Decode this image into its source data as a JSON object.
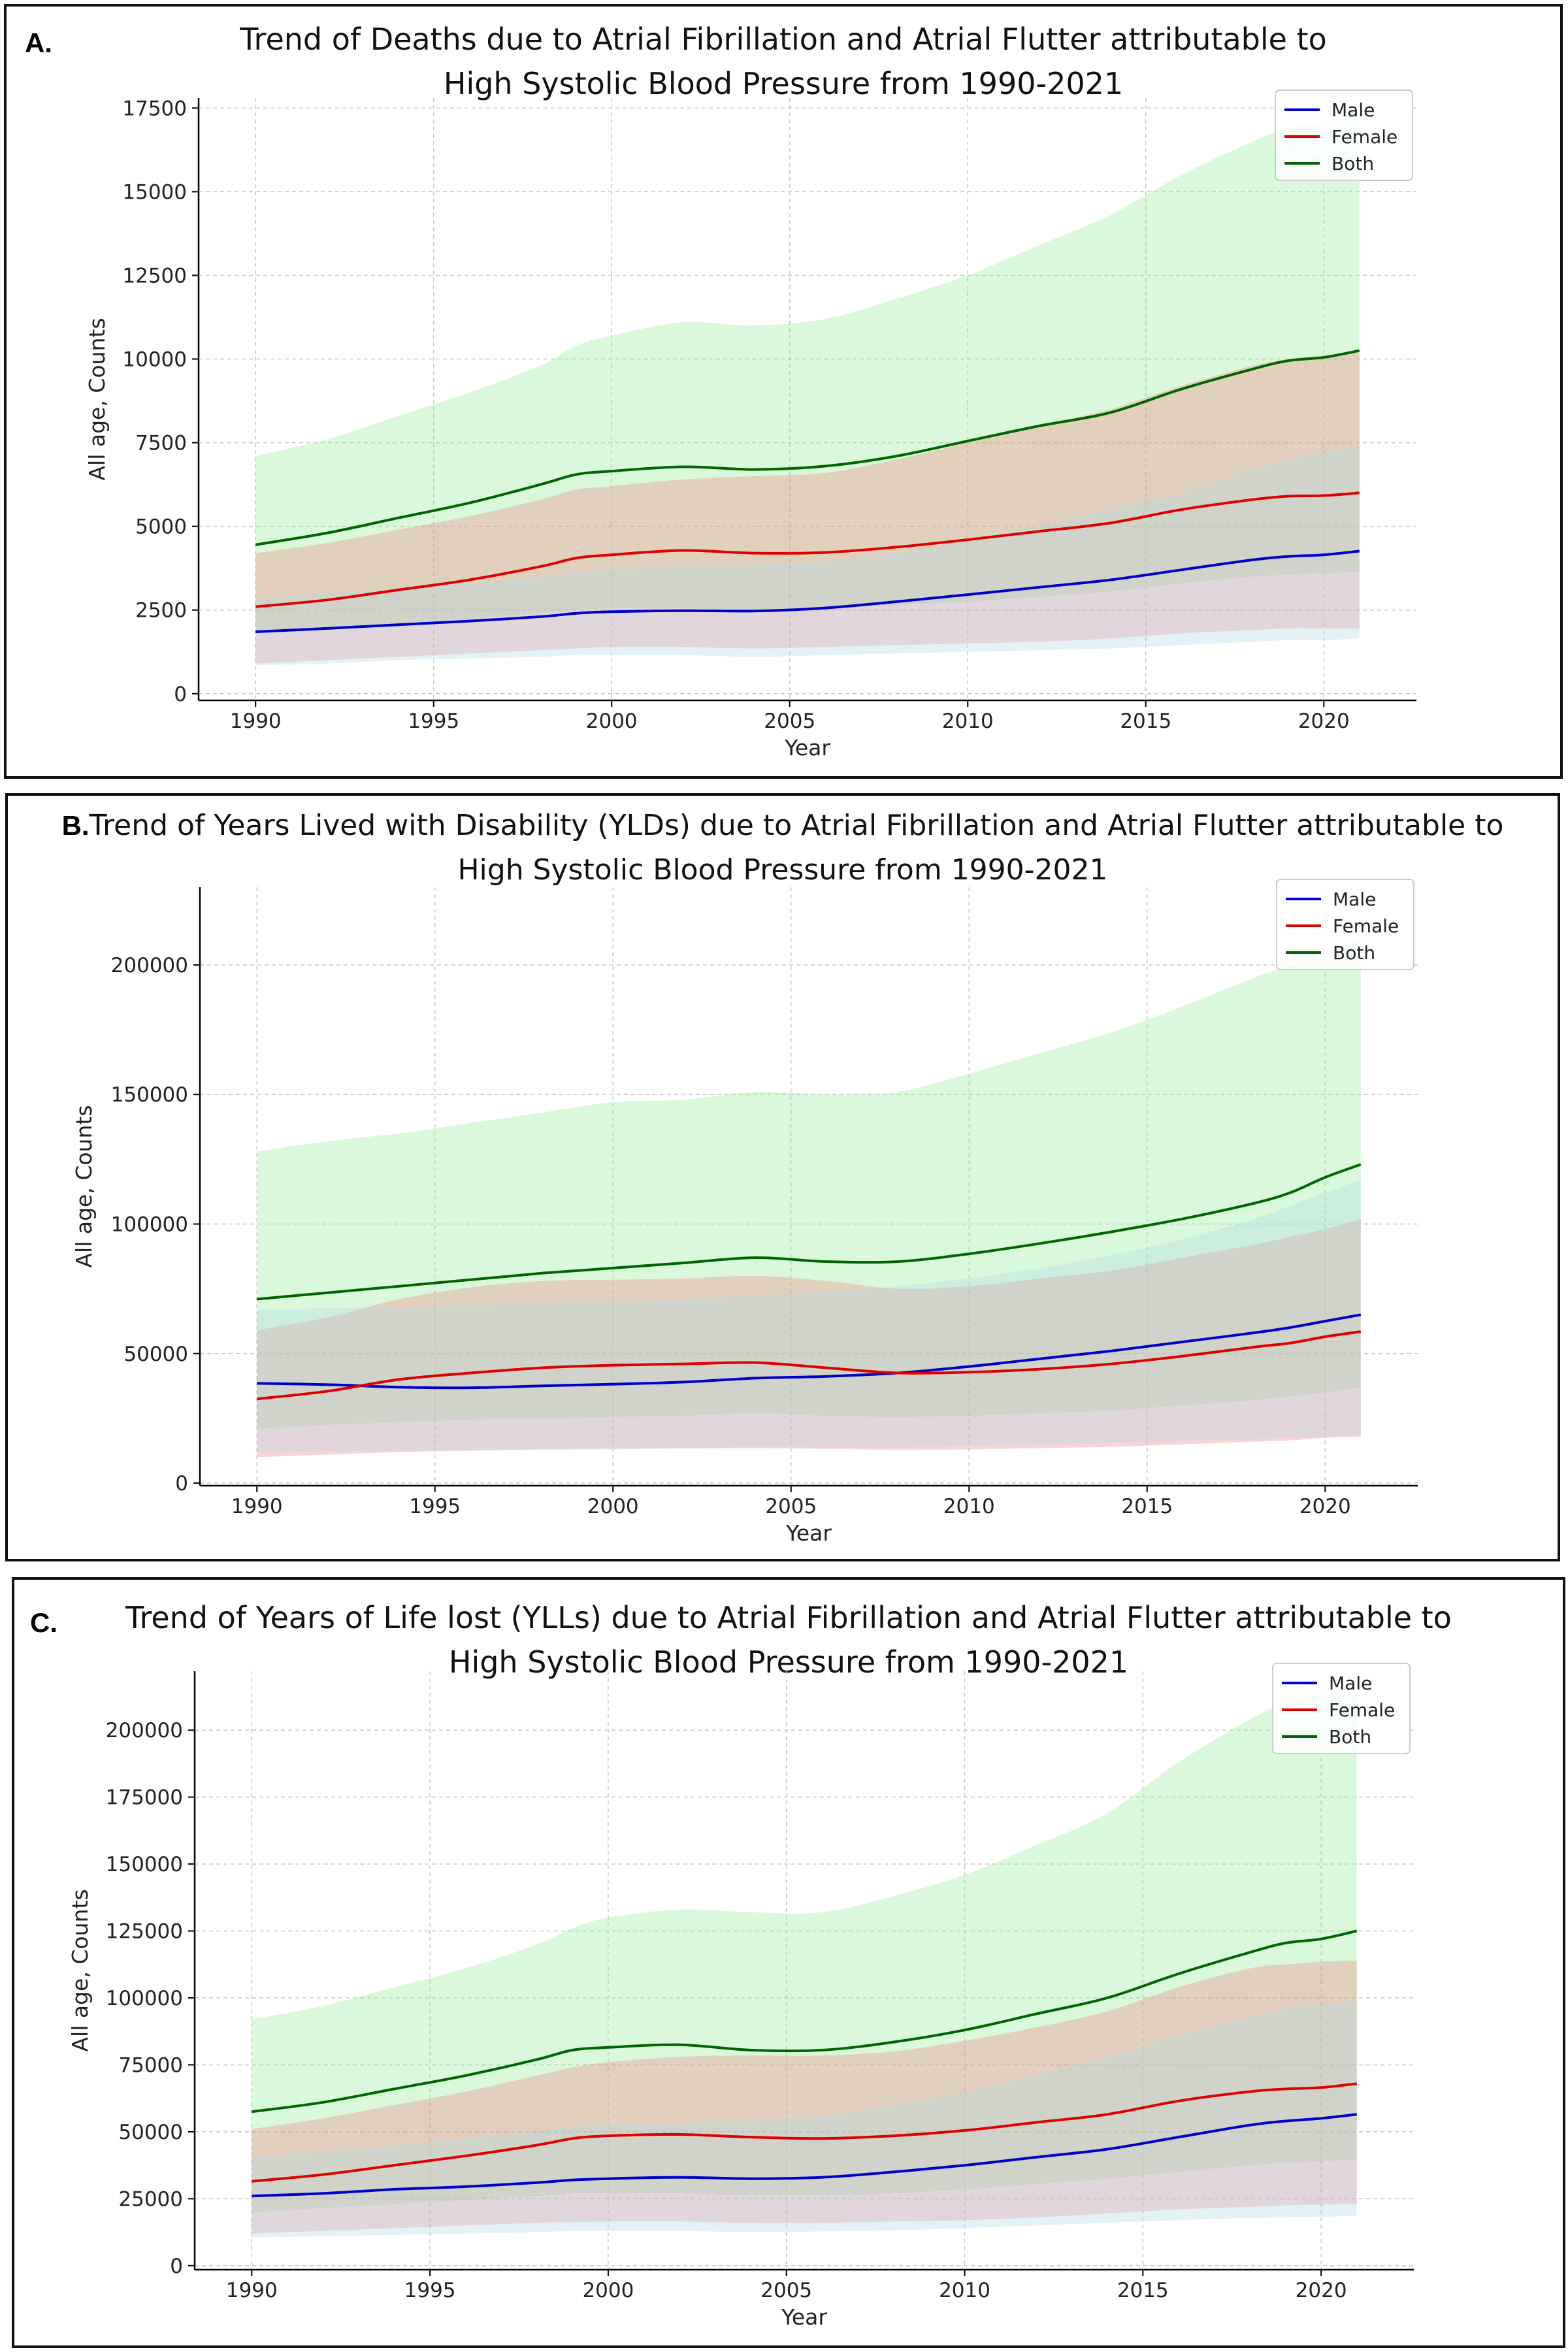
{
  "colors": {
    "male": "#0000cc",
    "male_band": "#add8e6",
    "female": "#e00000",
    "female_band": "#f08080",
    "both": "#006400",
    "both_band": "#90ee90"
  },
  "chart_data": [
    {
      "panel_label": "A.",
      "type": "area",
      "title_lines": [
        "Trend of Deaths due to Atrial Fibrillation and Atrial Flutter attributable to",
        "High Systolic Blood Pressure from 1990-2021"
      ],
      "xlabel": "Year",
      "ylabel": "All age, Counts",
      "xlim": [
        1988.4,
        2022.6
      ],
      "ylim": [
        -200,
        17800
      ],
      "xticks": [
        1990,
        1995,
        2000,
        2005,
        2010,
        2015,
        2020
      ],
      "yticks": [
        0,
        2500,
        5000,
        7500,
        10000,
        12500,
        15000,
        17500
      ],
      "grid": true,
      "legend_position": "top-right",
      "x": [
        1990,
        1992,
        1994,
        1996,
        1998,
        1999,
        2000,
        2002,
        2004,
        2006,
        2008,
        2010,
        2012,
        2014,
        2016,
        2018,
        2019,
        2020,
        2021
      ],
      "series": [
        {
          "name": "Male",
          "color_key": "male",
          "values": [
            1850,
            1950,
            2060,
            2170,
            2300,
            2400,
            2450,
            2480,
            2470,
            2560,
            2750,
            2960,
            3180,
            3400,
            3700,
            4000,
            4100,
            4150,
            4260
          ],
          "lower": [
            850,
            900,
            1000,
            1050,
            1100,
            1150,
            1150,
            1150,
            1100,
            1150,
            1200,
            1250,
            1300,
            1350,
            1450,
            1550,
            1600,
            1600,
            1650
          ],
          "upper": [
            2800,
            3000,
            3150,
            3300,
            3500,
            3650,
            3700,
            3800,
            3850,
            3950,
            4200,
            4600,
            5000,
            5500,
            6000,
            6700,
            7000,
            7200,
            7400
          ]
        },
        {
          "name": "Female",
          "color_key": "female",
          "values": [
            2600,
            2800,
            3100,
            3400,
            3800,
            4050,
            4150,
            4280,
            4200,
            4220,
            4380,
            4600,
            4850,
            5100,
            5500,
            5800,
            5900,
            5920,
            6000
          ],
          "lower": [
            900,
            1000,
            1100,
            1200,
            1300,
            1350,
            1400,
            1400,
            1350,
            1400,
            1450,
            1500,
            1550,
            1650,
            1800,
            1900,
            1950,
            1950,
            1950
          ],
          "upper": [
            4200,
            4500,
            4900,
            5300,
            5800,
            6100,
            6200,
            6400,
            6500,
            6600,
            7000,
            7500,
            8000,
            8500,
            9200,
            9800,
            10000,
            10100,
            10200
          ]
        },
        {
          "name": "Both",
          "color_key": "both",
          "values": [
            4450,
            4800,
            5250,
            5700,
            6250,
            6550,
            6650,
            6780,
            6700,
            6800,
            7100,
            7550,
            8000,
            8400,
            9100,
            9700,
            9950,
            10050,
            10250
          ],
          "lower": [
            1800,
            1900,
            2100,
            2250,
            2400,
            2500,
            2550,
            2550,
            2450,
            2550,
            2650,
            2750,
            2900,
            3050,
            3300,
            3500,
            3550,
            3600,
            3650
          ],
          "upper": [
            7100,
            7600,
            8300,
            9000,
            9800,
            10400,
            10700,
            11100,
            11000,
            11200,
            11800,
            12500,
            13400,
            14300,
            15500,
            16500,
            16900,
            17100,
            17300
          ]
        }
      ]
    },
    {
      "panel_label": "B.",
      "type": "area",
      "title_lines": [
        "Trend of Years Lived with Disability (YLDs) due to Atrial Fibrillation and Atrial Flutter attributable to",
        "High Systolic Blood Pressure from 1990-2021"
      ],
      "xlabel": "Year",
      "ylabel": "All age, Counts",
      "xlim": [
        1988.4,
        2022.6
      ],
      "ylim": [
        -1000,
        230000
      ],
      "xticks": [
        1990,
        1995,
        2000,
        2005,
        2010,
        2015,
        2020
      ],
      "yticks": [
        0,
        50000,
        100000,
        150000,
        200000
      ],
      "grid": true,
      "legend_position": "top-right",
      "x": [
        1990,
        1992,
        1994,
        1996,
        1998,
        2000,
        2002,
        2004,
        2006,
        2008,
        2010,
        2012,
        2014,
        2016,
        2018,
        2019,
        2020,
        2021
      ],
      "series": [
        {
          "name": "Male",
          "color_key": "male",
          "values": [
            38500,
            38000,
            37000,
            36800,
            37500,
            38200,
            39000,
            40500,
            41200,
            42500,
            45000,
            48000,
            51000,
            54500,
            58000,
            60000,
            62500,
            65000
          ],
          "lower": [
            12000,
            12200,
            12500,
            12700,
            12900,
            13000,
            13400,
            14000,
            13800,
            13800,
            14300,
            15000,
            15500,
            16300,
            17000,
            17500,
            18000,
            18500
          ],
          "upper": [
            67000,
            67500,
            68000,
            68500,
            69500,
            70000,
            71000,
            72500,
            74000,
            76000,
            79000,
            83000,
            88000,
            94000,
            102000,
            107000,
            112000,
            117000
          ]
        },
        {
          "name": "Female",
          "color_key": "female",
          "values": [
            32500,
            35500,
            40000,
            42500,
            44500,
            45500,
            46000,
            46500,
            44500,
            42500,
            42800,
            44000,
            46000,
            49000,
            52500,
            54000,
            56500,
            58500
          ],
          "lower": [
            10000,
            11000,
            12000,
            12500,
            13000,
            13300,
            13400,
            13500,
            13200,
            12800,
            13000,
            13500,
            14000,
            15000,
            16000,
            16500,
            17500,
            18000
          ],
          "upper": [
            59000,
            64000,
            71000,
            75500,
            78000,
            78500,
            79000,
            80000,
            78000,
            75000,
            76000,
            79000,
            82000,
            87000,
            92000,
            95000,
            98000,
            102000
          ]
        },
        {
          "name": "Both",
          "color_key": "both",
          "values": [
            71000,
            73500,
            76000,
            78500,
            81000,
            83000,
            85000,
            87000,
            85500,
            85500,
            88500,
            92500,
            97000,
            102000,
            108000,
            112000,
            118000,
            123000
          ],
          "lower": [
            21000,
            22500,
            23500,
            24500,
            25000,
            25500,
            26000,
            27000,
            26000,
            25500,
            26000,
            27000,
            28000,
            30000,
            32000,
            33500,
            35000,
            37000
          ],
          "upper": [
            128000,
            132000,
            135000,
            139000,
            143000,
            147000,
            148000,
            151000,
            150000,
            151000,
            158000,
            166000,
            174000,
            184000,
            195000,
            200000,
            205000,
            210000
          ]
        }
      ]
    },
    {
      "panel_label": "C.",
      "type": "area",
      "title_lines": [
        "Trend of Years of Life lost (YLLs) due to Atrial Fibrillation and Atrial Flutter attributable to",
        "High Systolic Blood Pressure from 1990-2021"
      ],
      "xlabel": "Year",
      "ylabel": "All age, Counts",
      "xlim": [
        1988.4,
        2022.6
      ],
      "ylim": [
        -1500,
        222000
      ],
      "xticks": [
        1990,
        1995,
        2000,
        2005,
        2010,
        2015,
        2020
      ],
      "yticks": [
        0,
        25000,
        50000,
        75000,
        100000,
        125000,
        150000,
        175000,
        200000
      ],
      "grid": true,
      "legend_position": "top-right",
      "x": [
        1990,
        1992,
        1994,
        1996,
        1998,
        1999,
        2000,
        2002,
        2004,
        2006,
        2008,
        2010,
        2012,
        2014,
        2016,
        2018,
        2019,
        2020,
        2021
      ],
      "series": [
        {
          "name": "Male",
          "color_key": "male",
          "values": [
            26000,
            27000,
            28500,
            29500,
            31000,
            32000,
            32500,
            33000,
            32500,
            33000,
            35000,
            37500,
            40500,
            43500,
            48000,
            52500,
            54000,
            55000,
            56500
          ],
          "lower": [
            10500,
            11000,
            11500,
            12000,
            12500,
            13000,
            13000,
            13000,
            12500,
            12800,
            13200,
            14000,
            15000,
            16000,
            17000,
            17800,
            18000,
            18300,
            18500
          ],
          "upper": [
            41000,
            42500,
            45000,
            47500,
            50000,
            52000,
            52500,
            53500,
            54000,
            56000,
            60000,
            65000,
            71000,
            78000,
            86000,
            93000,
            96000,
            97500,
            99000
          ]
        },
        {
          "name": "Female",
          "color_key": "female",
          "values": [
            31500,
            34000,
            37500,
            41000,
            45000,
            47500,
            48500,
            49000,
            48000,
            47500,
            48500,
            50500,
            53500,
            56500,
            61500,
            65000,
            66000,
            66500,
            68000
          ],
          "lower": [
            12000,
            13000,
            14000,
            15000,
            16000,
            16300,
            16500,
            16500,
            16000,
            16000,
            16500,
            17000,
            18000,
            19500,
            21000,
            22000,
            22500,
            22800,
            23000
          ],
          "upper": [
            51000,
            55000,
            60000,
            65000,
            71000,
            74000,
            76000,
            78000,
            78500,
            78500,
            80000,
            84000,
            89000,
            95000,
            104000,
            111000,
            112500,
            113500,
            114000
          ]
        },
        {
          "name": "Both",
          "color_key": "both",
          "values": [
            57500,
            61000,
            66000,
            71000,
            77000,
            80500,
            81500,
            82500,
            80500,
            80500,
            83500,
            88000,
            94000,
            100000,
            109000,
            117000,
            120500,
            122000,
            125000
          ],
          "lower": [
            20000,
            21500,
            23000,
            24500,
            26000,
            27000,
            27000,
            27000,
            26500,
            26500,
            27000,
            28500,
            30500,
            32500,
            35000,
            37500,
            38500,
            39000,
            39500
          ],
          "upper": [
            92000,
            97000,
            104000,
            111000,
            120000,
            126000,
            130000,
            133000,
            132000,
            132000,
            138000,
            146000,
            157000,
            169000,
            188000,
            204000,
            210000,
            213000,
            215000
          ]
        }
      ]
    }
  ]
}
